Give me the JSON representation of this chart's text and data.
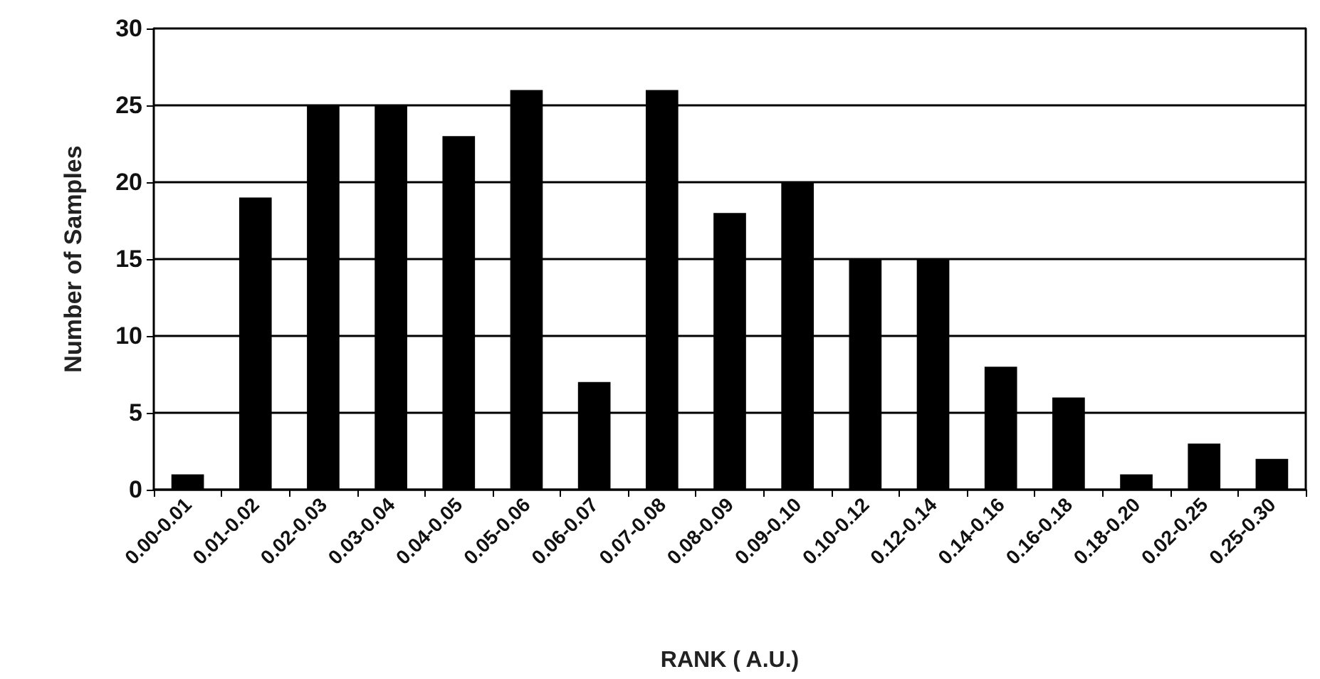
{
  "chart_data": {
    "type": "bar",
    "xlabel": "RANK ( A.U.)",
    "ylabel": "Number of Samples",
    "categories": [
      "0.00-0.01",
      "0.01-0.02",
      "0.02-0.03",
      "0.03-0.04",
      "0.04-0.05",
      "0.05-0.06",
      "0.06-0.07",
      "0.07-0.08",
      "0.08-0.09",
      "0.09-0.10",
      "0.10-0.12",
      "0.12-0.14",
      "0.14-0.16",
      "0.16-0.18",
      "0.18-0.20",
      "0.02-0.25",
      "0.25-0.30"
    ],
    "values": [
      1,
      19,
      25,
      25,
      23,
      26,
      7,
      26,
      18,
      20,
      15,
      15,
      8,
      6,
      1,
      3,
      2
    ],
    "color": "#000000",
    "ylim": [
      0,
      30
    ],
    "yticks": [
      0,
      5,
      10,
      15,
      20,
      25,
      30
    ],
    "grid": "y"
  }
}
